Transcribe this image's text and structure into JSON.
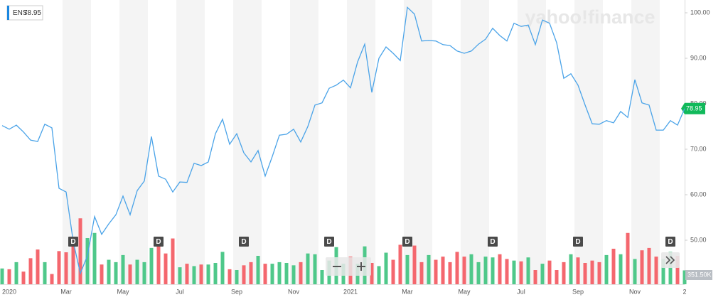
{
  "chart_data": {
    "type": "line",
    "symbol": "ENS",
    "last_price": 78.95,
    "watermark": "yahoo!finance",
    "categories": [
      null,
      "2020",
      null,
      null,
      null,
      null,
      null,
      null,
      null,
      "Mar",
      null,
      null,
      null,
      null,
      null,
      null,
      null,
      "May",
      null,
      null,
      null,
      null,
      null,
      null,
      null,
      "Jul",
      null,
      null,
      null,
      null,
      null,
      null,
      null,
      "Sep",
      null,
      null,
      null,
      null,
      null,
      null,
      null,
      "Nov",
      null,
      null,
      null,
      null,
      null,
      null,
      null,
      "2021",
      null,
      null,
      null,
      null,
      null,
      null,
      null,
      "Mar",
      null,
      null,
      null,
      null,
      null,
      null,
      null,
      "May",
      null,
      null,
      null,
      null,
      null,
      null,
      null,
      "Jul",
      null,
      null,
      null,
      null,
      null,
      null,
      null,
      "Sep",
      null,
      null,
      null,
      null,
      null,
      null,
      null,
      "Nov",
      null,
      null,
      null,
      null,
      null,
      null,
      "2"
    ],
    "series": [
      {
        "name": "ENS",
        "color": "#4aa3e8",
        "values": [
          75.2,
          74.4,
          75.3,
          73.8,
          72.0,
          71.7,
          75.5,
          74.7,
          61.4,
          60.6,
          49.7,
          42.7,
          46.6,
          55.2,
          51.3,
          53.6,
          55.6,
          59.7,
          55.6,
          60.9,
          63.0,
          72.8,
          64.1,
          63.4,
          60.6,
          62.8,
          62.7,
          66.9,
          66.4,
          67.2,
          73.4,
          76.6,
          71.1,
          73.4,
          69.2,
          67.2,
          69.7,
          64.1,
          68.4,
          73.1,
          73.3,
          74.4,
          71.6,
          75.0,
          79.7,
          80.2,
          83.4,
          84.1,
          85.2,
          83.5,
          89.2,
          93.1,
          82.5,
          90.0,
          92.5,
          91.1,
          89.5,
          101.2,
          99.7,
          93.8,
          93.9,
          93.8,
          93.0,
          92.8,
          91.6,
          91.1,
          91.6,
          93.1,
          94.2,
          96.6,
          95.0,
          93.8,
          97.7,
          97.0,
          97.3,
          93.0,
          98.4,
          97.7,
          93.4,
          85.6,
          86.6,
          84.1,
          79.7,
          75.6,
          75.5,
          76.3,
          75.8,
          78.3,
          77.0,
          85.3,
          80.2,
          79.7,
          74.2,
          74.2,
          76.3,
          75.3,
          78.95
        ]
      }
    ],
    "volume": {
      "up_color": "#4fc88a",
      "down_color": "#f4676e",
      "values": [
        400,
        380,
        560,
        320,
        660,
        880,
        560,
        260,
        840,
        810,
        1010,
        1670,
        1170,
        1300,
        500,
        620,
        560,
        740,
        500,
        620,
        560,
        920,
        1040,
        780,
        1160,
        430,
        520,
        460,
        500,
        500,
        540,
        820,
        380,
        360,
        480,
        560,
        720,
        520,
        520,
        560,
        540,
        480,
        560,
        780,
        760,
        360,
        600,
        940,
        520,
        700,
        520,
        960,
        540,
        460,
        800,
        620,
        1000,
        740,
        980,
        560,
        740,
        620,
        700,
        560,
        820,
        700,
        760,
        560,
        700,
        680,
        760,
        640,
        600,
        580,
        680,
        360,
        520,
        600,
        360,
        560,
        760,
        680,
        540,
        600,
        560,
        740,
        900,
        760,
        1300,
        640,
        860,
        920,
        700,
        640,
        820,
        720,
        351.5
      ],
      "label": {
        "value": 351.5,
        "label": "351.50K"
      },
      "vlim": [
        0,
        1800
      ]
    },
    "annotations": [
      {
        "index": 10,
        "text": "D"
      },
      {
        "index": 22,
        "text": "D"
      },
      {
        "index": 34,
        "text": "D"
      },
      {
        "index": 46,
        "text": "D"
      },
      {
        "index": 57,
        "text": "D"
      },
      {
        "index": 69,
        "text": "D"
      },
      {
        "index": 81,
        "text": "D"
      },
      {
        "index": 94,
        "text": "D"
      }
    ],
    "ylim": [
      40,
      102
    ],
    "yticks": [
      {
        "value": 50,
        "label": "50.00"
      },
      {
        "value": 60,
        "label": "60.00"
      },
      {
        "value": 70,
        "label": "70.00"
      },
      {
        "value": 80,
        "label": "80.00"
      },
      {
        "value": 90,
        "label": "90.00"
      },
      {
        "value": 100,
        "label": "100.00"
      }
    ]
  }
}
